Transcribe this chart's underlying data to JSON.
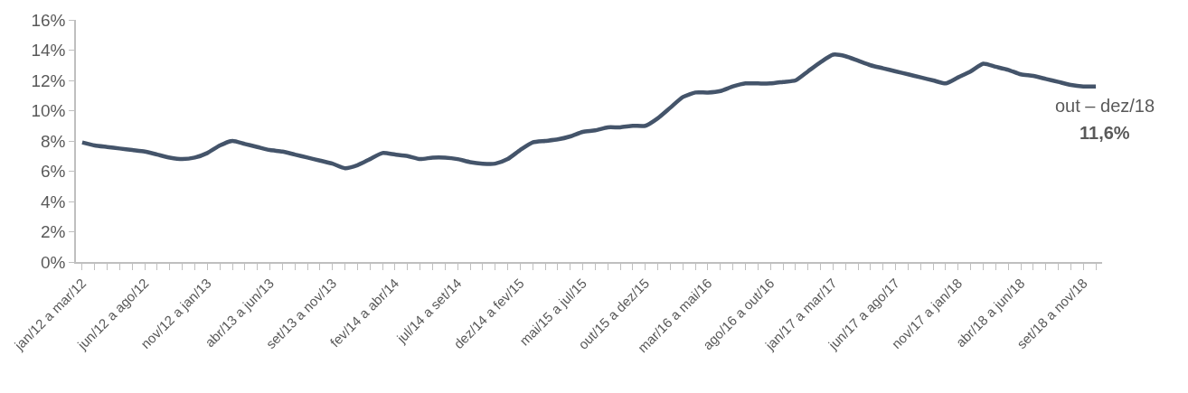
{
  "chart_data": {
    "type": "line",
    "categories": [
      "jan/12 a mar/12",
      null,
      null,
      null,
      null,
      "jun/12 a ago/12",
      null,
      null,
      null,
      null,
      "nov/12 a jan/13",
      null,
      null,
      null,
      null,
      "abr/13 a jun/13",
      null,
      null,
      null,
      null,
      "set/13 a nov/13",
      null,
      null,
      null,
      null,
      "fev/14 a abr/14",
      null,
      null,
      null,
      null,
      "jul/14 a set/14",
      null,
      null,
      null,
      null,
      "dez/14 a fev/15",
      null,
      null,
      null,
      null,
      "mai/15 a jul/15",
      null,
      null,
      null,
      null,
      "out/15 a dez/15",
      null,
      null,
      null,
      null,
      "mar/16 a mai/16",
      null,
      null,
      null,
      null,
      "ago/16 a out/16",
      null,
      null,
      null,
      null,
      "jan/17 a mar/17",
      null,
      null,
      null,
      null,
      "jun/17 a ago/17",
      null,
      null,
      null,
      null,
      "nov/17 a jan/18",
      null,
      null,
      null,
      null,
      "abr/18 a jun/18",
      null,
      null,
      null,
      null,
      "set/18 a nov/18",
      null
    ],
    "series": [
      {
        "color": "#44546a",
        "values": [
          7.9,
          7.7,
          7.6,
          7.5,
          7.4,
          7.3,
          7.1,
          6.9,
          6.8,
          6.9,
          7.2,
          7.7,
          8.0,
          7.8,
          7.6,
          7.4,
          7.3,
          7.1,
          6.9,
          6.7,
          6.5,
          6.2,
          6.4,
          6.8,
          7.2,
          7.1,
          7.0,
          6.8,
          6.9,
          6.9,
          6.8,
          6.6,
          6.5,
          6.5,
          6.8,
          7.4,
          7.9,
          8.0,
          8.1,
          8.3,
          8.6,
          8.7,
          8.9,
          8.9,
          9.0,
          9.0,
          9.5,
          10.2,
          10.9,
          11.2,
          11.2,
          11.3,
          11.6,
          11.8,
          11.8,
          11.8,
          11.9,
          12.0,
          12.6,
          13.2,
          13.7,
          13.6,
          13.3,
          13.0,
          12.8,
          12.6,
          12.4,
          12.2,
          12.0,
          11.8,
          12.2,
          12.6,
          13.1,
          12.9,
          12.7,
          12.4,
          12.3,
          12.1,
          11.9,
          11.7,
          11.6,
          11.6
        ]
      }
    ],
    "ylim": [
      0,
      16
    ],
    "yticks": [
      {
        "value": 0,
        "label": "0%"
      },
      {
        "value": 2,
        "label": "2%"
      },
      {
        "value": 4,
        "label": "4%"
      },
      {
        "value": 6,
        "label": "6%"
      },
      {
        "value": 8,
        "label": "8%"
      },
      {
        "value": 10,
        "label": "10%"
      },
      {
        "value": 12,
        "label": "12%"
      },
      {
        "value": 14,
        "label": "14%"
      },
      {
        "value": 16,
        "label": "16%"
      }
    ],
    "annotations": [
      "out – dez/18",
      "11,6%"
    ],
    "marker": "none",
    "line_style": "solid"
  }
}
